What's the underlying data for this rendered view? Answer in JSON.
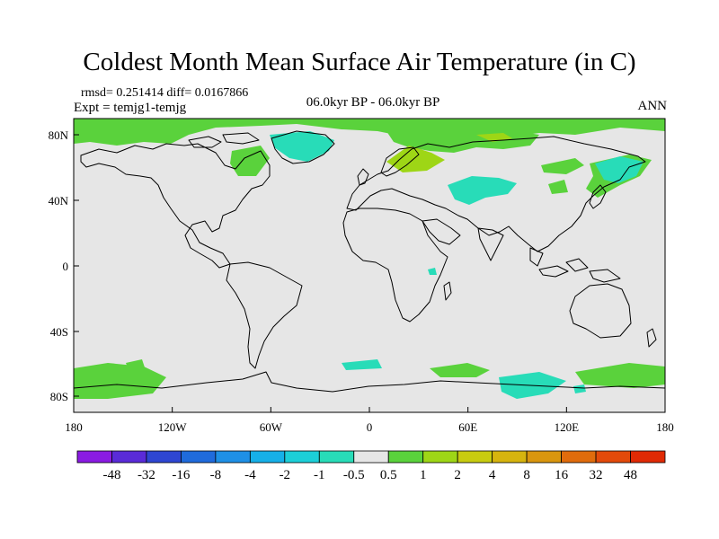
{
  "title": "Coldest Month Mean Surface Air Temperature (in C)",
  "stats": "rmsd= 0.251414 diff= 0.0167866",
  "expt": "Expt = temjg1-temjg",
  "period": "06.0kyr BP - 06.0kyr BP",
  "season": "ANN",
  "map": {
    "ocean_color": "#e6e6e6",
    "coast_color": "#000000",
    "lon_ticks": [
      "180",
      "120W",
      "60W",
      "0",
      "60E",
      "120E",
      "180"
    ],
    "lat_ticks": [
      "80N",
      "40N",
      "0",
      "40S",
      "80S"
    ]
  },
  "legend": {
    "colors": [
      "#8a1be2",
      "#5a2bd8",
      "#2e46d2",
      "#1f6bdc",
      "#1e90e6",
      "#16b0e8",
      "#1ccfd8",
      "#28dcb8",
      "#e6e6e6",
      "#5ad23c",
      "#9ed616",
      "#c8cc10",
      "#d6b40e",
      "#d9960e",
      "#e06c0c",
      "#e34a0a",
      "#e02a05"
    ],
    "labels": [
      "-48",
      "-32",
      "-16",
      "-8",
      "-4",
      "-2",
      "-1",
      "-0.5",
      "0.5",
      "1",
      "2",
      "4",
      "8",
      "16",
      "32",
      "48"
    ]
  }
}
